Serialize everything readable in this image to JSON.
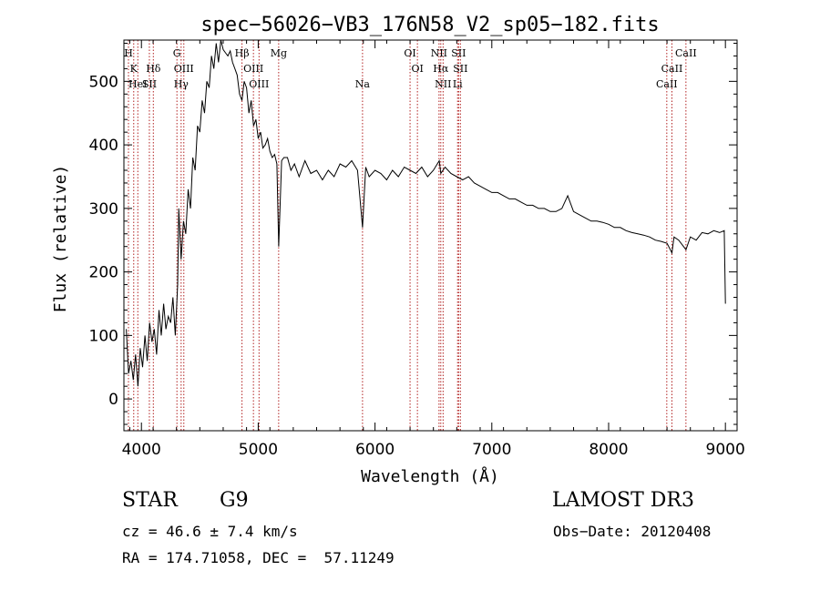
{
  "chart_data": {
    "type": "line",
    "title": "spec−56026−VB3_176N58_V2_sp05−182.fits",
    "xlabel": "Wavelength (Å)",
    "ylabel": "Flux (relative)",
    "xlim": [
      3850,
      9100
    ],
    "ylim": [
      -50,
      565
    ],
    "xticks": [
      4000,
      5000,
      6000,
      7000,
      8000,
      9000
    ],
    "yticks": [
      0,
      100,
      200,
      300,
      400,
      500
    ],
    "grid": false,
    "series": [
      {
        "x": [
          3870,
          3890,
          3910,
          3930,
          3950,
          3970,
          3990,
          4010,
          4030,
          4050,
          4070,
          4090,
          4110,
          4130,
          4150,
          4170,
          4190,
          4210,
          4230,
          4250,
          4270,
          4290,
          4310,
          4320,
          4340,
          4360,
          4380,
          4400,
          4420,
          4440,
          4460,
          4480,
          4500,
          4520,
          4540,
          4560,
          4580,
          4600,
          4620,
          4640,
          4660,
          4680,
          4700,
          4720,
          4740,
          4760,
          4780,
          4800,
          4820,
          4840,
          4861,
          4880,
          4900,
          4920,
          4940,
          4960,
          4980,
          5000,
          5020,
          5040,
          5060,
          5080,
          5100,
          5120,
          5140,
          5160,
          5175,
          5200,
          5220,
          5250,
          5280,
          5310,
          5350,
          5400,
          5450,
          5500,
          5550,
          5600,
          5650,
          5700,
          5750,
          5800,
          5850,
          5893,
          5920,
          5950,
          6000,
          6050,
          6100,
          6150,
          6200,
          6250,
          6300,
          6350,
          6400,
          6450,
          6500,
          6550,
          6563,
          6600,
          6650,
          6700,
          6750,
          6800,
          6850,
          6900,
          6950,
          7000,
          7050,
          7100,
          7150,
          7200,
          7250,
          7300,
          7350,
          7400,
          7450,
          7500,
          7550,
          7600,
          7650,
          7700,
          7750,
          7800,
          7850,
          7900,
          7950,
          8000,
          8050,
          8100,
          8150,
          8200,
          8250,
          8300,
          8350,
          8400,
          8450,
          8500,
          8542,
          8560,
          8600,
          8662,
          8700,
          8750,
          8800,
          8850,
          8900,
          8950,
          8990,
          9000
        ],
        "values": [
          110,
          40,
          60,
          30,
          70,
          20,
          80,
          50,
          100,
          60,
          120,
          90,
          110,
          70,
          140,
          100,
          150,
          110,
          130,
          120,
          160,
          100,
          180,
          300,
          220,
          280,
          260,
          330,
          300,
          380,
          360,
          430,
          420,
          470,
          450,
          500,
          490,
          540,
          520,
          560,
          530,
          565,
          550,
          545,
          540,
          548,
          530,
          520,
          510,
          480,
          470,
          500,
          490,
          450,
          470,
          430,
          440,
          410,
          420,
          395,
          400,
          410,
          390,
          380,
          385,
          370,
          240,
          375,
          380,
          380,
          360,
          370,
          350,
          375,
          355,
          360,
          345,
          360,
          350,
          370,
          365,
          375,
          360,
          270,
          365,
          350,
          360,
          355,
          345,
          360,
          350,
          365,
          360,
          355,
          365,
          350,
          360,
          375,
          355,
          365,
          355,
          350,
          345,
          350,
          340,
          335,
          330,
          325,
          325,
          320,
          315,
          315,
          310,
          305,
          305,
          300,
          300,
          295,
          295,
          300,
          320,
          295,
          290,
          285,
          280,
          280,
          278,
          275,
          270,
          270,
          265,
          262,
          260,
          258,
          255,
          250,
          248,
          245,
          230,
          255,
          250,
          235,
          255,
          250,
          262,
          260,
          265,
          262,
          265,
          150
        ],
        "color": "#000000"
      }
    ],
    "lines": [
      {
        "x": 3889,
        "label": "H",
        "row": 0
      },
      {
        "x": 3934,
        "label": "K",
        "row": 1
      },
      {
        "x": 3969,
        "label": "HeI",
        "row": 2
      },
      {
        "x": 4068,
        "label": "SII",
        "row": 2
      },
      {
        "x": 4102,
        "label": "Hδ",
        "row": 1
      },
      {
        "x": 4304,
        "label": "G",
        "row": 0
      },
      {
        "x": 4340,
        "label": "Hγ",
        "row": 2
      },
      {
        "x": 4363,
        "label": "OIII",
        "row": 1
      },
      {
        "x": 4861,
        "label": "Hβ",
        "row": 0
      },
      {
        "x": 4959,
        "label": "OIII",
        "row": 1
      },
      {
        "x": 5007,
        "label": "OIII",
        "row": 2
      },
      {
        "x": 5175,
        "label": "Mg",
        "row": 0
      },
      {
        "x": 5893,
        "label": "Na",
        "row": 2
      },
      {
        "x": 6300,
        "label": "OI",
        "row": 0
      },
      {
        "x": 6363,
        "label": "OI",
        "row": 1
      },
      {
        "x": 6548,
        "label": "NII",
        "row": 0
      },
      {
        "x": 6563,
        "label": "Hα",
        "row": 1
      },
      {
        "x": 6583,
        "label": "NII",
        "row": 2
      },
      {
        "x": 6707,
        "label": "Li",
        "row": 2
      },
      {
        "x": 6716,
        "label": "SII",
        "row": 0
      },
      {
        "x": 6731,
        "label": "SII",
        "row": 1
      },
      {
        "x": 8498,
        "label": "CaII",
        "row": 2
      },
      {
        "x": 8542,
        "label": "CaII",
        "row": 1
      },
      {
        "x": 8662,
        "label": "CaII",
        "row": 0
      }
    ]
  },
  "info": {
    "class": "STAR",
    "subclass": "G9",
    "survey": "LAMOST DR3",
    "cz": "cz = 46.6 ± 7.4 km/s",
    "obs_date": "Obs−Date: 20120408",
    "coords": "RA = 174.71058, DEC =  57.11249"
  }
}
